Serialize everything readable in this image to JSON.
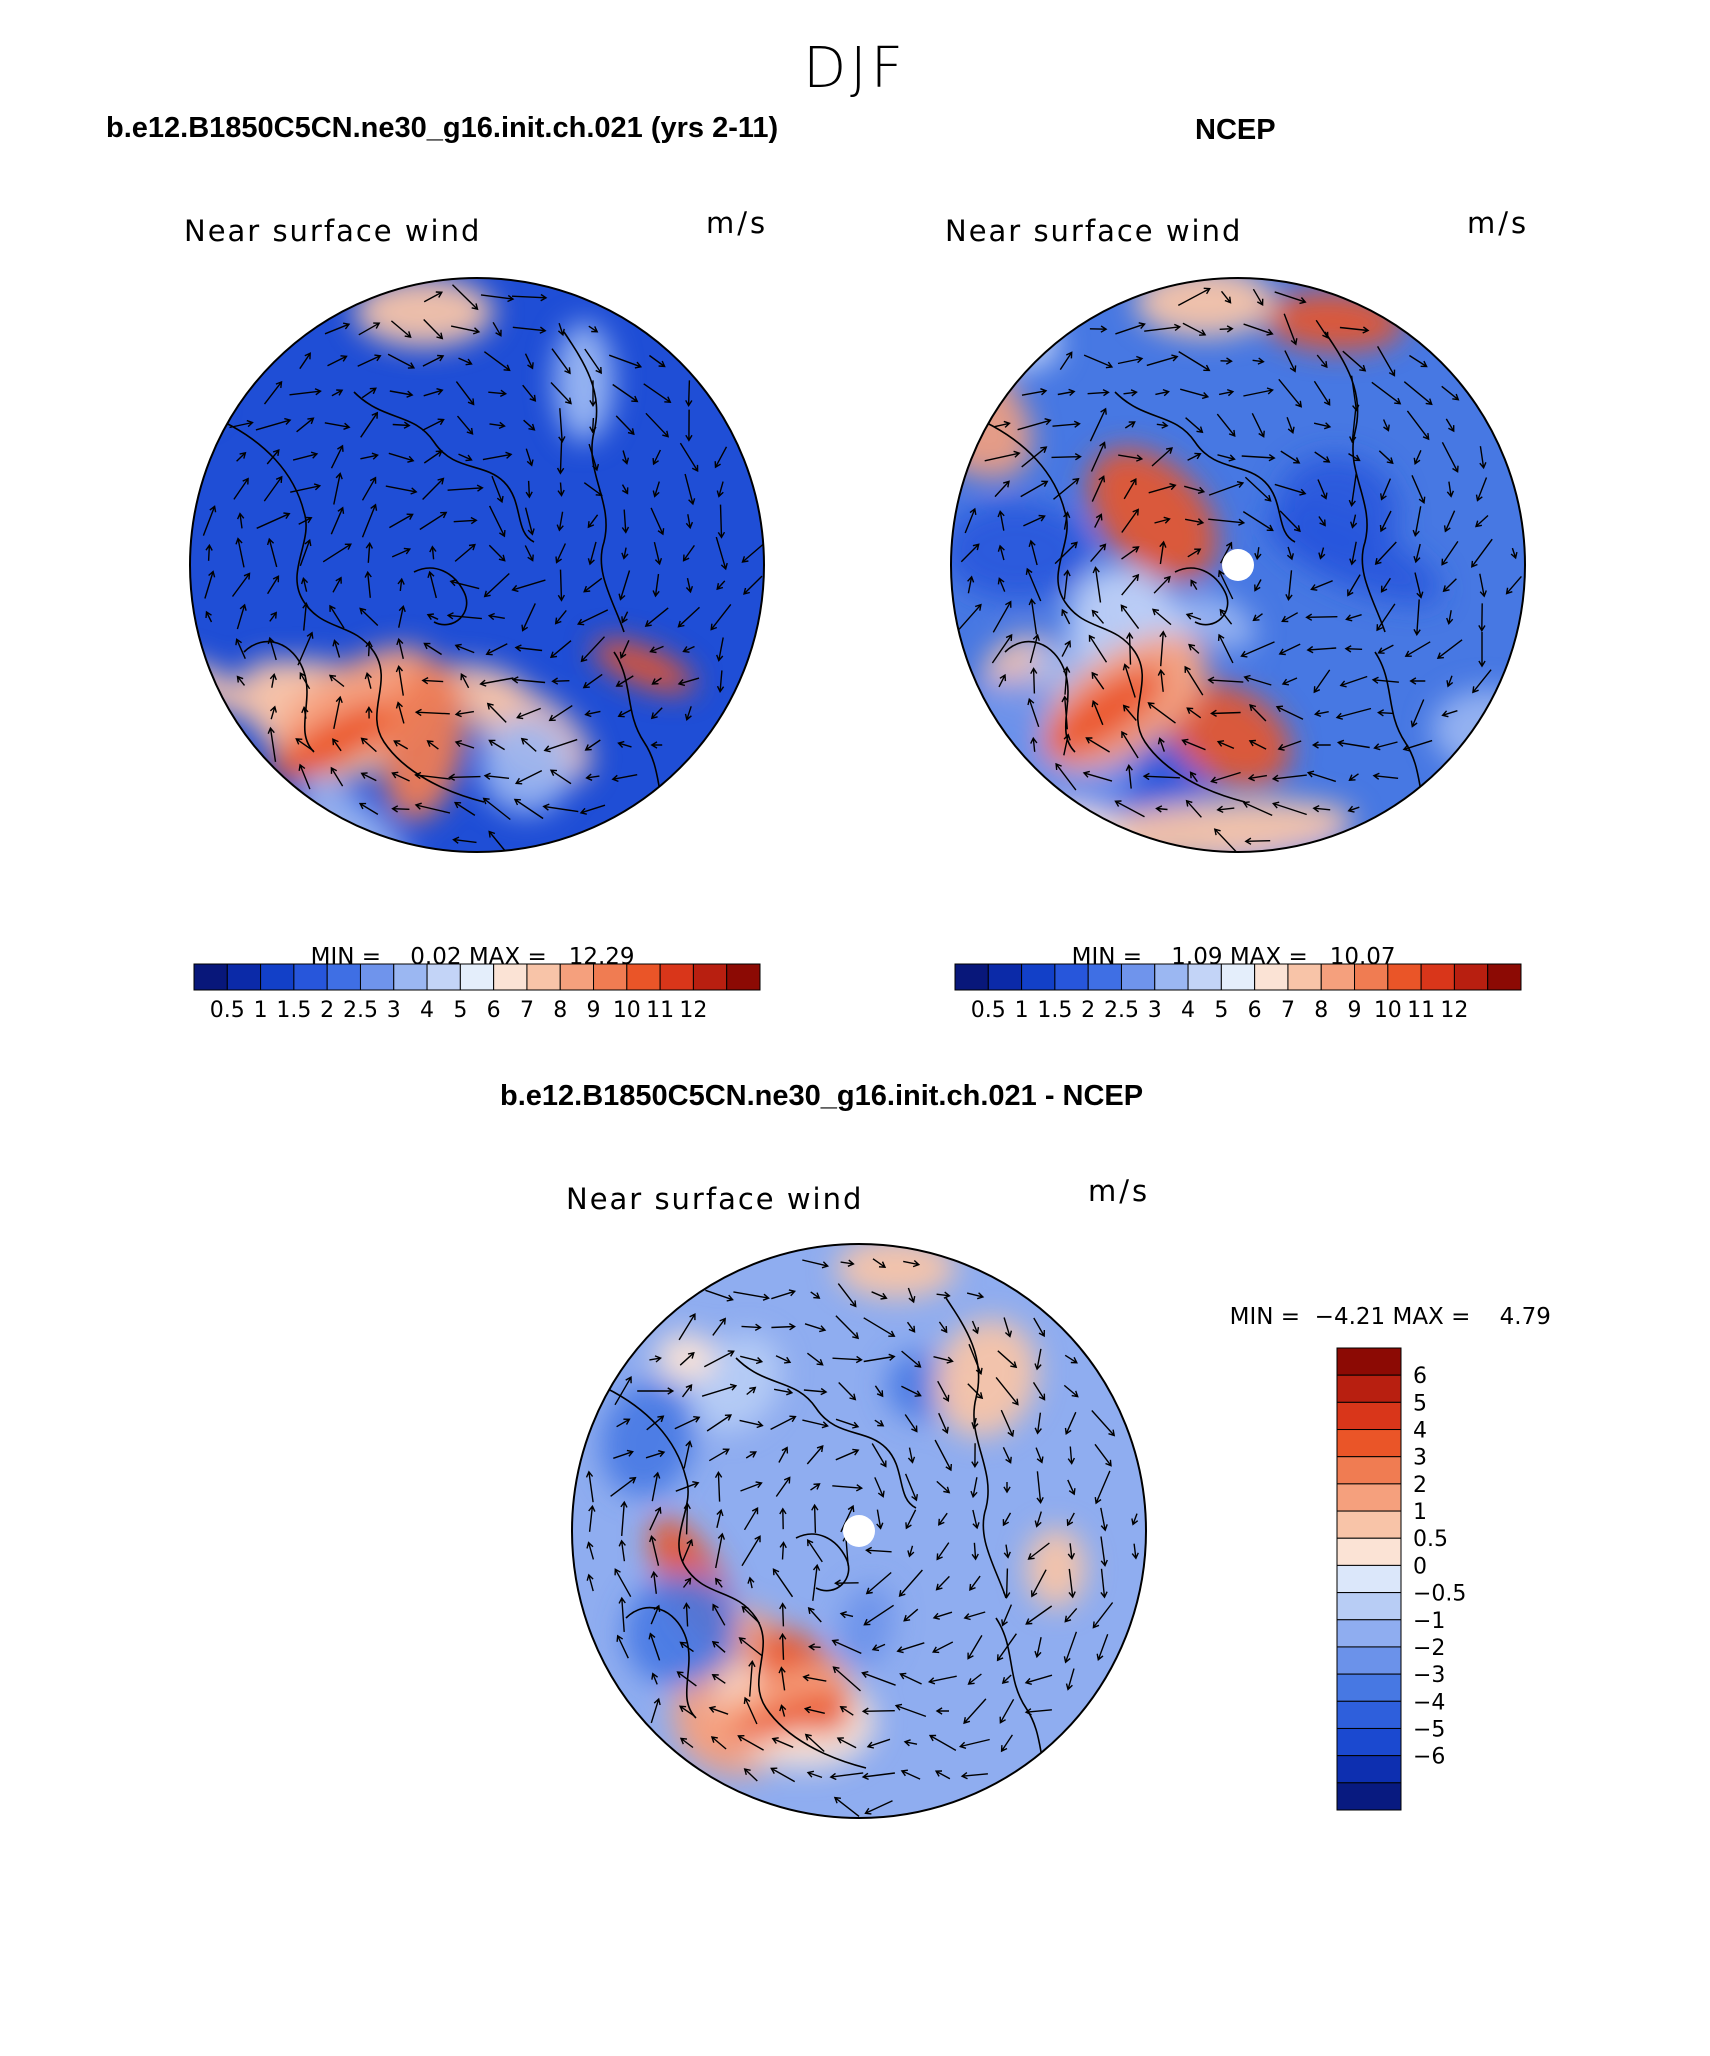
{
  "figure": {
    "season": "DJF",
    "top_left_title": "b.e12.B1850C5CN.ne30_g16.init.ch.021 (yrs 2-11)",
    "top_right_title": "NCEP",
    "bottom_title": "b.e12.B1850C5CN.ne30_g16.init.ch.021 - NCEP"
  },
  "panels": [
    {
      "id": "model",
      "variable_label": "Near surface wind",
      "units": "m/s",
      "min_label": "MIN =",
      "min_value": "0.02",
      "max_label": "MAX =",
      "max_value": "12.29",
      "pole_hole": false
    },
    {
      "id": "ncep",
      "variable_label": "Near surface wind",
      "units": "m/s",
      "min_label": "MIN =",
      "min_value": "1.09",
      "max_label": "MAX =",
      "max_value": "10.07",
      "pole_hole": true
    },
    {
      "id": "difference",
      "variable_label": "Near surface wind",
      "units": "m/s",
      "min_label": "MIN =",
      "min_value": "−4.21",
      "max_label": "MAX =",
      "max_value": "4.79",
      "pole_hole": true
    }
  ],
  "wind_colorbar": {
    "colors": [
      "#08177a",
      "#0b2aa8",
      "#1240c8",
      "#2756db",
      "#3f6fe4",
      "#6f94ec",
      "#9bb7f2",
      "#c3d4f7",
      "#e4eefb",
      "#fbe3d5",
      "#f8c4a8",
      "#f5a07d",
      "#f07c52",
      "#ea5528",
      "#d9361a",
      "#b81f10",
      "#8c0a04"
    ],
    "tick_labels": [
      "0.5",
      "1",
      "1.5",
      "2",
      "2.5",
      "3",
      "4",
      "5",
      "6",
      "7",
      "8",
      "9",
      "10",
      "11",
      "12"
    ]
  },
  "diff_colorbar": {
    "colors": [
      "#8c0a04",
      "#b81f10",
      "#d9361a",
      "#ea5528",
      "#f07c52",
      "#f5a07d",
      "#f8c4a8",
      "#fbe3d5",
      "#dbe7fa",
      "#b8cdf5",
      "#8fadf0",
      "#6b92ea",
      "#4778e3",
      "#2e5fdc",
      "#1b49d0",
      "#0d2fb0",
      "#081a80"
    ],
    "tick_labels": [
      "6",
      "5",
      "4",
      "3",
      "2",
      "1",
      "0.5",
      "0",
      "−0.5",
      "−1",
      "−2",
      "−3",
      "−4",
      "−5",
      "−6"
    ]
  },
  "map_colors": {
    "model": {
      "background": "#1f4ed6",
      "blobs": [
        "#0d2fb0",
        "#08177a",
        "#3f6fe4",
        "#6f94ec",
        "#9bb7f2",
        "#f5a07d",
        "#ea5528",
        "#f8c4a8"
      ]
    },
    "ncep": {
      "background": "#4778e3",
      "blobs": [
        "#2756db",
        "#6f94ec",
        "#9bb7f2",
        "#c3d4f7",
        "#f5a07d",
        "#ea5528",
        "#f8c4a8"
      ]
    },
    "difference": {
      "background": "#8fadf0",
      "blobs": [
        "#b8cdf5",
        "#6b92ea",
        "#4778e3",
        "#2e5fdc",
        "#f8c4a8",
        "#f5a07d",
        "#ea5528",
        "#fbe3d5"
      ]
    }
  }
}
